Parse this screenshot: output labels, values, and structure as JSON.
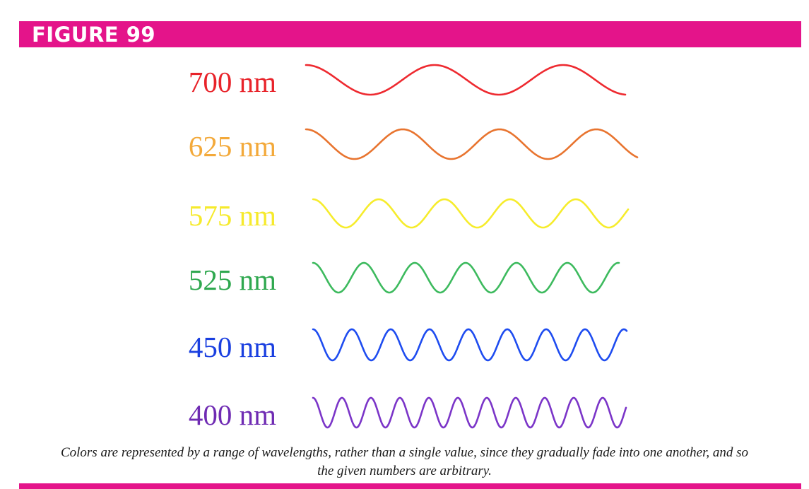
{
  "header": {
    "title": "FIGURE 99"
  },
  "waves": [
    {
      "label": "700 nm",
      "wavelength_nm": 700,
      "color": "#e8232a",
      "stroke": "#ee2a30"
    },
    {
      "label": "625 nm",
      "wavelength_nm": 625,
      "color": "#f3a93a",
      "stroke": "#e8742f"
    },
    {
      "label": "575 nm",
      "wavelength_nm": 575,
      "color": "#f6ea2c",
      "stroke": "#f6ec2c"
    },
    {
      "label": "525 nm",
      "wavelength_nm": 525,
      "color": "#2fa84f",
      "stroke": "#3dba5e"
    },
    {
      "label": "450 nm",
      "wavelength_nm": 450,
      "color": "#1a3fe0",
      "stroke": "#1e4cf0"
    },
    {
      "label": "400 nm",
      "wavelength_nm": 400,
      "color": "#6f2bb3",
      "stroke": "#7b35c8"
    }
  ],
  "caption": {
    "line1": "Colors are represented by a range of wavelengths, rather than a single value, since they gradually fade into one another, and so",
    "line2": "the given numbers are arbitrary."
  },
  "colors": {
    "accent": "#e4148a"
  }
}
